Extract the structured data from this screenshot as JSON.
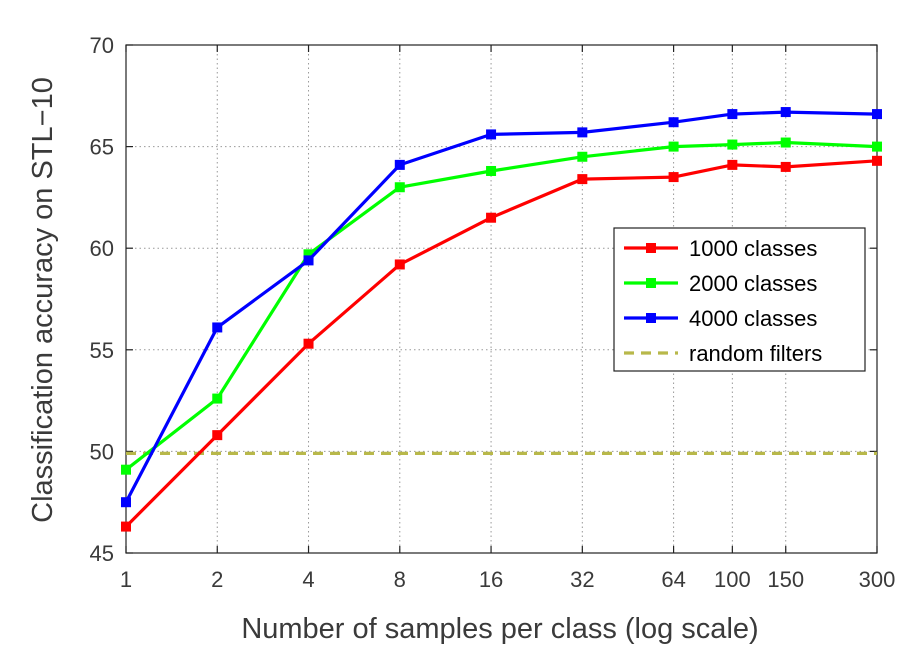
{
  "chart_data": {
    "type": "line",
    "x_scale": "log",
    "xlabel": "Number of samples per class (log scale)",
    "ylabel": "Classification accuracy on STL−10",
    "x": [
      1,
      2,
      4,
      8,
      16,
      32,
      64,
      100,
      150,
      300
    ],
    "x_tick_labels": [
      "1",
      "2",
      "4",
      "8",
      "16",
      "32",
      "64",
      "100",
      "150",
      "300"
    ],
    "y_ticks": [
      45,
      50,
      55,
      60,
      65,
      70
    ],
    "ylim": [
      45,
      70
    ],
    "xlim": [
      1,
      300
    ],
    "grid": true,
    "legend_position": "right",
    "series": [
      {
        "name": "1000 classes",
        "color": "#ff0000",
        "marker": "square",
        "values": [
          46.3,
          50.8,
          55.3,
          59.2,
          61.5,
          63.4,
          63.5,
          64.1,
          64.0,
          64.3
        ]
      },
      {
        "name": "2000 classes",
        "color": "#00ff00",
        "marker": "square",
        "values": [
          49.1,
          52.6,
          59.7,
          63.0,
          63.8,
          64.5,
          65.0,
          65.1,
          65.2,
          65.0
        ]
      },
      {
        "name": "4000 classes",
        "color": "#0000ff",
        "marker": "square",
        "values": [
          47.5,
          56.1,
          59.4,
          64.1,
          65.6,
          65.7,
          66.2,
          66.6,
          66.7,
          66.6
        ]
      },
      {
        "name": "random filters",
        "color": "#b8b84a",
        "style": "dashed",
        "values": [
          49.9,
          49.9,
          49.9,
          49.9,
          49.9,
          49.9,
          49.9,
          49.9,
          49.9,
          49.9
        ]
      }
    ]
  }
}
